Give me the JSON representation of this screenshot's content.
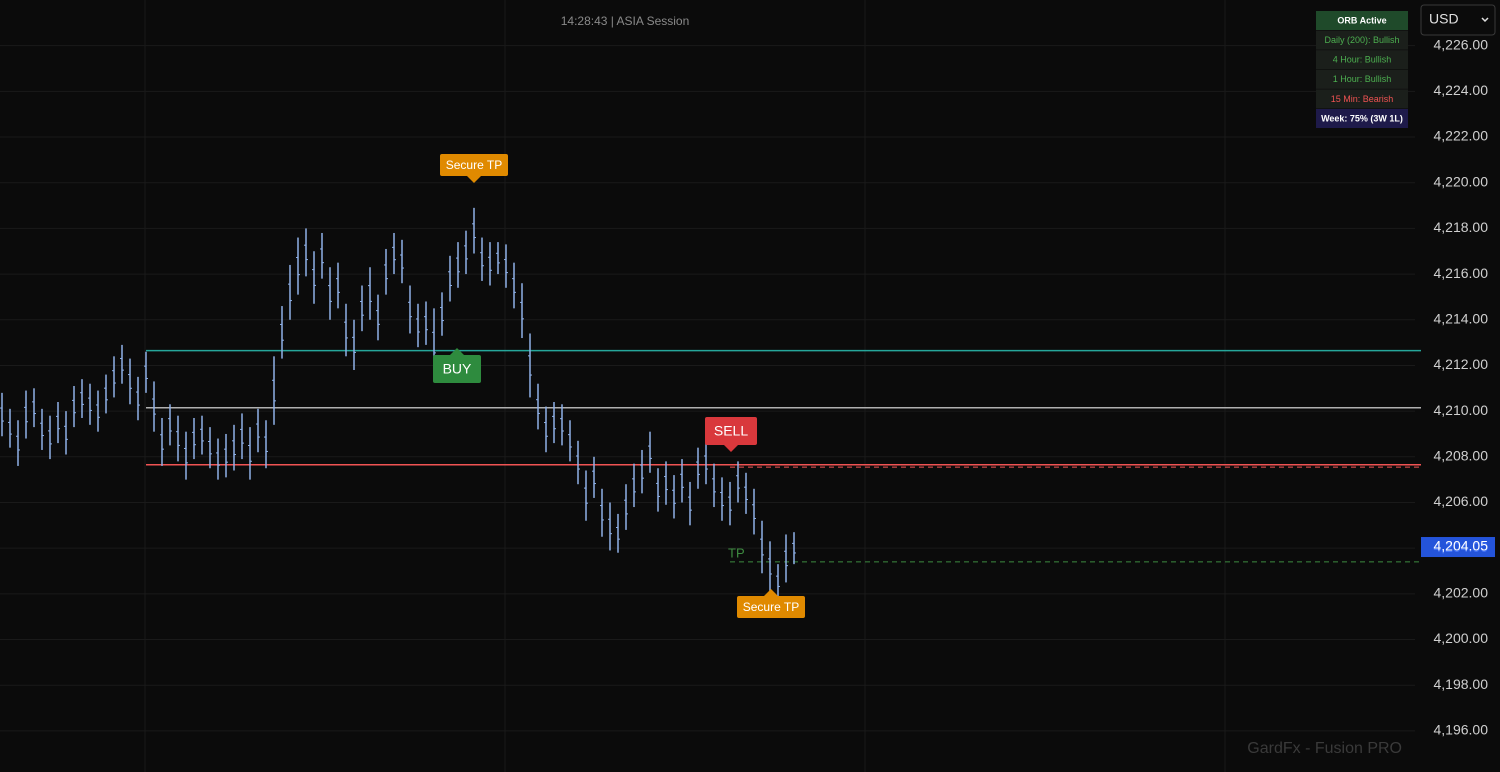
{
  "chart_data": {
    "type": "hl_bars",
    "session_label": "14:28:43 | ASIA Session",
    "currency": "USD",
    "watermark": "GardFx - Fusion PRO",
    "bar_color": "#8fb1e8",
    "grid": true,
    "ylim": [
      4194.2,
      4228.0
    ],
    "yticks": [
      {
        "value": 4196,
        "label": "4,196.00"
      },
      {
        "value": 4198,
        "label": "4,198.00"
      },
      {
        "value": 4200,
        "label": "4,200.00"
      },
      {
        "value": 4202,
        "label": "4,202.00"
      },
      {
        "value": 4204,
        "label": "4,204.00"
      },
      {
        "value": 4206,
        "label": "4,206.00"
      },
      {
        "value": 4208,
        "label": "4,208.00"
      },
      {
        "value": 4210,
        "label": "4,210.00"
      },
      {
        "value": 4212,
        "label": "4,212.00"
      },
      {
        "value": 4214,
        "label": "4,214.00"
      },
      {
        "value": 4216,
        "label": "4,216.00"
      },
      {
        "value": 4218,
        "label": "4,218.00"
      },
      {
        "value": 4220,
        "label": "4,220.00"
      },
      {
        "value": 4222,
        "label": "4,222.00"
      },
      {
        "value": 4224,
        "label": "4,224.00"
      },
      {
        "value": 4226,
        "label": "4,226.00"
      }
    ],
    "last_price": {
      "value": 4204.05,
      "label": "4,204.05"
    },
    "high": [
      4210.8,
      4210.1,
      4209.6,
      4210.9,
      4211.0,
      4210.1,
      4209.8,
      4210.4,
      4210.0,
      4211.1,
      4211.4,
      4211.2,
      4210.9,
      4211.6,
      4212.4,
      4212.9,
      4212.3,
      4211.5,
      4212.6,
      4211.3,
      4209.7,
      4210.3,
      4209.8,
      4209.1,
      4209.7,
      4209.8,
      4209.3,
      4208.8,
      4209.0,
      4209.4,
      4209.9,
      4209.3,
      4210.1,
      4209.6,
      4212.4,
      4214.6,
      4216.4,
      4217.6,
      4218.0,
      4217.0,
      4217.8,
      4216.3,
      4216.5,
      4214.7,
      4214.0,
      4215.5,
      4216.3,
      4215.1,
      4217.1,
      4217.8,
      4217.5,
      4215.5,
      4214.7,
      4214.8,
      4214.5,
      4215.2,
      4216.8,
      4217.4,
      4217.9,
      4218.9,
      4217.6,
      4217.4,
      4217.4,
      4217.3,
      4216.5,
      4215.6,
      4213.4,
      4211.2,
      4210.2,
      4210.4,
      4210.3,
      4209.6,
      4208.7,
      4207.4,
      4208.0,
      4206.6,
      4206.0,
      4205.5,
      4206.8,
      4207.7,
      4208.3,
      4209.1,
      4207.5,
      4207.8,
      4207.2,
      4207.9,
      4206.9,
      4208.4,
      4208.7,
      4207.7,
      4207.1,
      4206.9,
      4207.8,
      4207.3,
      4206.6,
      4205.2,
      4204.3,
      4203.3,
      4204.6,
      4204.7
    ],
    "low": [
      4208.9,
      4208.4,
      4207.6,
      4208.8,
      4209.3,
      4208.3,
      4207.9,
      4208.6,
      4208.1,
      4209.3,
      4209.7,
      4209.4,
      4209.1,
      4209.9,
      4210.6,
      4211.2,
      4210.3,
      4209.6,
      4210.8,
      4209.1,
      4207.6,
      4208.5,
      4207.8,
      4207.0,
      4207.9,
      4208.1,
      4207.5,
      4207.0,
      4207.1,
      4207.4,
      4207.9,
      4207.0,
      4208.2,
      4207.5,
      4209.4,
      4212.3,
      4214.0,
      4215.1,
      4215.9,
      4214.7,
      4215.8,
      4214.0,
      4214.5,
      4212.4,
      4211.8,
      4213.5,
      4214.0,
      4213.1,
      4215.1,
      4216.0,
      4215.6,
      4213.4,
      4212.8,
      4212.9,
      4211.5,
      4213.3,
      4214.8,
      4215.4,
      4216.0,
      4216.9,
      4215.7,
      4215.5,
      4216.0,
      4215.4,
      4214.5,
      4213.2,
      4210.6,
      4209.2,
      4208.2,
      4208.6,
      4208.5,
      4207.8,
      4206.8,
      4205.2,
      4206.2,
      4204.5,
      4203.9,
      4203.8,
      4204.8,
      4205.8,
      4206.4,
      4207.3,
      4205.6,
      4205.9,
      4205.3,
      4206.0,
      4205.0,
      4206.6,
      4206.8,
      4205.8,
      4205.2,
      4205.0,
      4206.0,
      4205.5,
      4204.6,
      4202.9,
      4202.1,
      4201.8,
      4202.5,
      4203.3
    ],
    "levels": [
      {
        "value": 4212.65,
        "color": "#26a69a",
        "dashed": false
      },
      {
        "value": 4210.15,
        "color": "#b0b0b0",
        "dashed": false
      },
      {
        "value": 4207.65,
        "color": "#f05353",
        "dashed": false
      },
      {
        "value": 4207.55,
        "color": "#f05353",
        "dashed": true
      },
      {
        "value": 4203.4,
        "color": "#3d8b40",
        "dashed": true
      }
    ],
    "signals": [
      {
        "text": "Secure TP",
        "color": "#e08a00"
      },
      {
        "text": "BUY",
        "color": "#2e8b3e"
      },
      {
        "text": "SELL",
        "color": "#d9383c"
      },
      {
        "text": "Secure TP",
        "color": "#e08a00"
      }
    ],
    "tp_label": "TP",
    "status_panel": [
      {
        "text": "ORB Active",
        "color": "#ffffff",
        "bg": "#1f4a2a"
      },
      {
        "text": "Daily (200): Bullish",
        "color": "#4caf50",
        "bg": "#1b1f1b"
      },
      {
        "text": "4 Hour: Bullish",
        "color": "#4caf50",
        "bg": "#1b1f1b"
      },
      {
        "text": "1 Hour: Bullish",
        "color": "#4caf50",
        "bg": "#1b1f1b"
      },
      {
        "text": "15 Min: Bearish",
        "color": "#f05353",
        "bg": "#1b1f1b"
      },
      {
        "text": "Week: 75% (3W 1L)",
        "color": "#ffffff",
        "bg": "#1e1a4a"
      }
    ]
  }
}
